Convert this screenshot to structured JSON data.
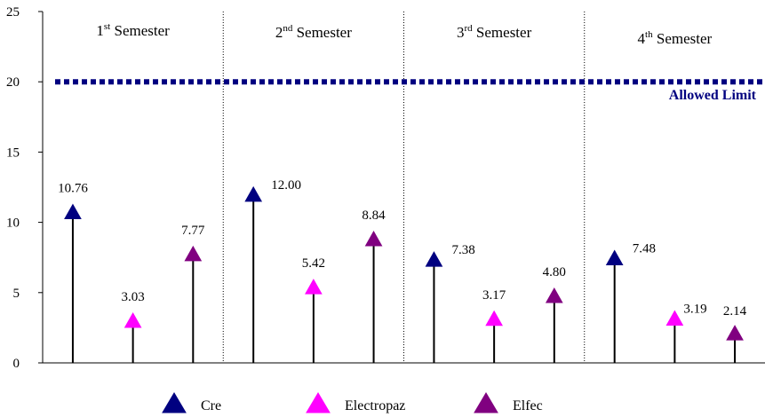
{
  "chart_data": {
    "type": "stem",
    "title": "",
    "xlabel": "",
    "ylabel": "",
    "ylim": [
      0,
      25
    ],
    "yticks": [
      0,
      5,
      10,
      15,
      20,
      25
    ],
    "grid": false,
    "legend_position": "bottom",
    "sections": [
      {
        "base": "1",
        "sup": "st",
        "label": " Semester"
      },
      {
        "base": "2",
        "sup": "nd",
        "label": " Semester"
      },
      {
        "base": "3",
        "sup": "rd",
        "label": " Semester"
      },
      {
        "base": "4",
        "sup": "th",
        "label": " Semester"
      }
    ],
    "series": [
      {
        "name": "Cre",
        "color": "#000080",
        "values": [
          10.76,
          12.0,
          7.38,
          7.48
        ],
        "labels": [
          "10.76",
          "12.00",
          "7.38",
          "7.48"
        ]
      },
      {
        "name": "Electropaz",
        "color": "#ff00ff",
        "values": [
          3.03,
          5.42,
          3.17,
          3.19
        ],
        "labels": [
          "3.03",
          "5.42",
          "3.17",
          "3.19"
        ]
      },
      {
        "name": "Elfec",
        "color": "#800080",
        "values": [
          7.77,
          8.84,
          4.8,
          2.14
        ],
        "labels": [
          "7.77",
          "8.84",
          "4.80",
          "2.14"
        ]
      }
    ],
    "reference_line": {
      "value": 20,
      "label": "Allowed Limit",
      "color": "#000080",
      "style": "dotted"
    }
  }
}
